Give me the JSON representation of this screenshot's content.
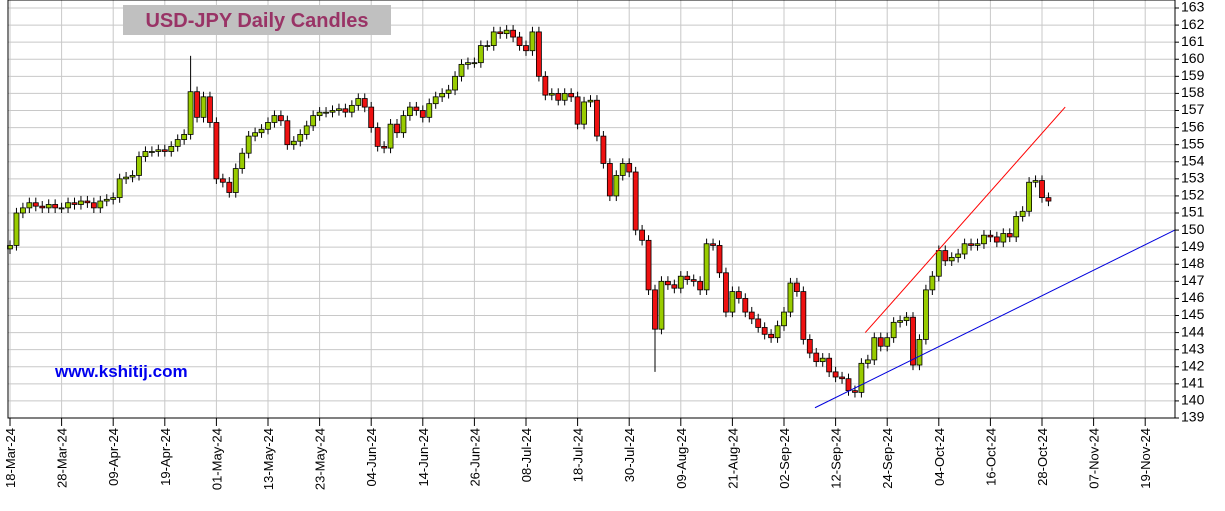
{
  "chart_data": {
    "type": "candlestick",
    "title": "USD-JPY Daily Candles",
    "annotation": "www.kshitij.com",
    "up_color": "#99cc00",
    "down_color": "#ee1111",
    "ylim": [
      139,
      163
    ],
    "yticks": [
      139,
      140,
      141,
      142,
      143,
      144,
      145,
      146,
      147,
      148,
      149,
      150,
      151,
      152,
      153,
      154,
      155,
      156,
      157,
      158,
      159,
      160,
      161,
      162,
      163
    ],
    "grid": true,
    "categories": [
      "18-Mar-24",
      null,
      null,
      null,
      null,
      null,
      null,
      null,
      "28-Mar-24",
      null,
      null,
      null,
      null,
      null,
      null,
      null,
      "09-Apr-24",
      null,
      null,
      null,
      null,
      null,
      null,
      null,
      "19-Apr-24",
      null,
      null,
      null,
      null,
      null,
      null,
      null,
      "01-May-24",
      null,
      null,
      null,
      null,
      null,
      null,
      null,
      "13-May-24",
      null,
      null,
      null,
      null,
      null,
      null,
      null,
      "23-May-24",
      null,
      null,
      null,
      null,
      null,
      null,
      null,
      "04-Jun-24",
      null,
      null,
      null,
      null,
      null,
      null,
      null,
      "14-Jun-24",
      null,
      null,
      null,
      null,
      null,
      null,
      null,
      "26-Jun-24",
      null,
      null,
      null,
      null,
      null,
      null,
      null,
      "08-Jul-24",
      null,
      null,
      null,
      null,
      null,
      null,
      null,
      "18-Jul-24",
      null,
      null,
      null,
      null,
      null,
      null,
      null,
      "30-Jul-24",
      null,
      null,
      null,
      null,
      null,
      null,
      null,
      "09-Aug-24",
      null,
      null,
      null,
      null,
      null,
      null,
      null,
      "21-Aug-24",
      null,
      null,
      null,
      null,
      null,
      null,
      null,
      "02-Sep-24",
      null,
      null,
      null,
      null,
      null,
      null,
      null,
      "12-Sep-24",
      null,
      null,
      null,
      null,
      null,
      null,
      null,
      "24-Sep-24",
      null,
      null,
      null,
      null,
      null,
      null,
      null,
      "04-Oct-24",
      null,
      null,
      null,
      null,
      null,
      null,
      null,
      "16-Oct-24",
      null,
      null,
      null,
      null,
      null,
      null,
      null,
      "28-Oct-24",
      null,
      null,
      null,
      null,
      null,
      null,
      null,
      "07-Nov-24",
      null,
      null,
      null,
      null,
      null,
      null,
      null,
      "19-Nov-24"
    ],
    "open": [
      148.9,
      149.1,
      151.0,
      151.3,
      151.6,
      151.4,
      151.3,
      151.5,
      151.3,
      151.3,
      151.6,
      151.5,
      151.7,
      151.6,
      151.3,
      151.7,
      151.8,
      151.9,
      153.0,
      153.1,
      153.2,
      154.3,
      154.6,
      154.6,
      154.7,
      154.6,
      154.9,
      155.3,
      155.6,
      158.1,
      156.6,
      157.8,
      156.3,
      153.0,
      152.8,
      152.2,
      153.6,
      154.5,
      155.5,
      155.7,
      155.9,
      156.3,
      156.7,
      156.4,
      155.0,
      155.2,
      155.6,
      156.1,
      156.7,
      156.9,
      156.9,
      157.0,
      157.1,
      156.9,
      157.3,
      157.7,
      157.2,
      156.0,
      154.9,
      154.8,
      156.2,
      155.7,
      156.7,
      157.2,
      157.0,
      156.6,
      157.4,
      157.8,
      158.0,
      158.2,
      159.0,
      159.7,
      159.8,
      159.8,
      160.8,
      160.8,
      161.6,
      161.5,
      161.7,
      161.3,
      160.8,
      160.5,
      161.6,
      159.0,
      157.9,
      158.0,
      157.6,
      158.0,
      157.8,
      156.2,
      157.5,
      157.6,
      155.5,
      153.9,
      152.0,
      153.2,
      153.9,
      153.4,
      150.0,
      149.4,
      146.5,
      144.2,
      147.0,
      146.8,
      146.6,
      147.3,
      147.1,
      147.0,
      146.5,
      149.2,
      149.1,
      147.5,
      145.2,
      146.4,
      146.0,
      145.2,
      144.8,
      144.3,
      143.9,
      143.7,
      144.4,
      145.2,
      146.9,
      146.4,
      143.6,
      142.8,
      142.3,
      142.5,
      141.7,
      141.4,
      141.3,
      140.6,
      140.5,
      142.2,
      142.4,
      143.7,
      143.2,
      143.7,
      144.6,
      144.7,
      144.9,
      142.1,
      143.6,
      146.5,
      147.3,
      148.8,
      148.2,
      148.4,
      148.6,
      149.2,
      149.1,
      149.2,
      149.7,
      149.6,
      149.3,
      149.8,
      149.6,
      150.8,
      151.1,
      152.8,
      152.9,
      151.9,
      null,
      null,
      null,
      null,
      null,
      null,
      null,
      null,
      null,
      null,
      null,
      null,
      null,
      null,
      null
    ],
    "high": [
      149.4,
      151.3,
      151.6,
      151.9,
      151.9,
      151.7,
      151.8,
      151.8,
      151.6,
      151.9,
      151.9,
      152.0,
      152.0,
      151.9,
      152.0,
      152.1,
      152.2,
      153.3,
      153.4,
      153.5,
      154.6,
      154.9,
      154.9,
      155.0,
      155.0,
      155.2,
      155.6,
      155.9,
      160.2,
      158.4,
      158.1,
      158.1,
      156.6,
      153.3,
      153.1,
      153.9,
      154.8,
      155.8,
      156.0,
      156.2,
      156.6,
      157.0,
      157.0,
      156.7,
      155.5,
      155.9,
      156.4,
      157.0,
      157.2,
      157.2,
      157.3,
      157.4,
      157.4,
      157.6,
      158.0,
      158.0,
      157.5,
      156.3,
      155.2,
      156.5,
      156.5,
      157.0,
      157.5,
      157.5,
      157.3,
      157.7,
      158.1,
      158.3,
      158.5,
      159.3,
      160.0,
      160.1,
      160.1,
      161.1,
      161.1,
      161.9,
      161.9,
      162.0,
      162.0,
      161.6,
      161.1,
      161.9,
      161.9,
      159.3,
      158.3,
      158.3,
      158.3,
      158.3,
      158.1,
      157.8,
      157.9,
      157.9,
      155.8,
      154.2,
      153.5,
      154.2,
      154.2,
      153.7,
      150.3,
      149.7,
      146.8,
      147.3,
      147.3,
      147.1,
      147.6,
      147.6,
      147.4,
      147.3,
      149.5,
      149.5,
      149.4,
      147.8,
      146.7,
      146.7,
      146.3,
      145.5,
      145.1,
      144.6,
      144.2,
      144.7,
      145.5,
      147.2,
      147.2,
      146.7,
      143.9,
      143.1,
      142.8,
      142.8,
      142.0,
      141.7,
      141.6,
      140.9,
      142.5,
      142.7,
      144.0,
      144.0,
      144.0,
      144.9,
      145.0,
      145.2,
      145.2,
      143.9,
      146.8,
      147.6,
      149.1,
      149.1,
      148.7,
      148.9,
      149.5,
      149.5,
      149.5,
      150.0,
      150.0,
      149.9,
      150.1,
      150.1,
      151.1,
      151.4,
      153.1,
      153.2,
      153.2,
      152.2,
      null,
      null,
      null,
      null,
      null,
      null,
      null,
      null,
      null,
      null,
      null,
      null,
      null,
      null,
      null
    ],
    "low": [
      148.6,
      148.8,
      150.7,
      151.0,
      151.1,
      151.0,
      151.0,
      151.0,
      151.0,
      151.0,
      151.2,
      151.2,
      151.3,
      151.0,
      151.0,
      151.4,
      151.5,
      151.6,
      152.7,
      152.8,
      152.9,
      154.0,
      154.3,
      154.3,
      154.3,
      154.3,
      154.6,
      155.0,
      155.3,
      156.3,
      156.3,
      156.0,
      152.7,
      152.5,
      151.9,
      151.9,
      153.3,
      154.2,
      155.2,
      155.4,
      155.6,
      156.0,
      156.1,
      154.7,
      154.7,
      154.9,
      155.3,
      155.8,
      156.4,
      156.6,
      156.6,
      156.7,
      156.6,
      156.6,
      157.0,
      156.9,
      155.7,
      154.6,
      154.5,
      154.5,
      155.4,
      155.4,
      156.4,
      156.7,
      156.3,
      156.3,
      157.1,
      157.5,
      157.7,
      157.9,
      158.7,
      159.4,
      159.5,
      159.5,
      160.5,
      160.5,
      161.2,
      161.2,
      161.0,
      160.5,
      160.2,
      160.2,
      158.7,
      157.6,
      157.6,
      157.3,
      157.3,
      157.5,
      155.9,
      155.9,
      157.2,
      155.2,
      153.6,
      151.7,
      151.7,
      152.9,
      153.1,
      149.7,
      149.1,
      146.2,
      141.7,
      143.9,
      146.5,
      146.3,
      146.3,
      146.8,
      146.7,
      146.2,
      146.2,
      148.8,
      147.2,
      144.9,
      144.9,
      145.7,
      144.9,
      144.5,
      144.0,
      143.6,
      143.4,
      143.4,
      144.1,
      144.9,
      146.1,
      143.3,
      142.5,
      142.0,
      142.0,
      141.4,
      141.1,
      141.0,
      140.3,
      140.2,
      140.2,
      141.9,
      142.1,
      142.9,
      142.9,
      143.4,
      144.3,
      144.4,
      141.8,
      141.8,
      143.3,
      146.2,
      147.0,
      147.9,
      147.9,
      148.1,
      148.3,
      148.8,
      148.8,
      148.9,
      149.3,
      149.0,
      149.0,
      149.3,
      149.3,
      150.5,
      150.8,
      152.5,
      151.6,
      151.4,
      null,
      null,
      null,
      null,
      null,
      null,
      null,
      null,
      null,
      null,
      null,
      null,
      null,
      null,
      null
    ],
    "close": [
      149.1,
      151.0,
      151.3,
      151.6,
      151.4,
      151.3,
      151.5,
      151.3,
      151.3,
      151.6,
      151.5,
      151.7,
      151.6,
      151.3,
      151.7,
      151.8,
      151.9,
      153.0,
      153.1,
      153.2,
      154.3,
      154.6,
      154.6,
      154.7,
      154.6,
      154.9,
      155.3,
      155.6,
      158.1,
      156.6,
      157.8,
      156.3,
      153.0,
      152.8,
      152.2,
      153.6,
      154.5,
      155.5,
      155.7,
      155.9,
      156.3,
      156.7,
      156.4,
      155.0,
      155.2,
      155.6,
      156.1,
      156.7,
      156.9,
      156.9,
      157.0,
      157.1,
      156.9,
      157.3,
      157.7,
      157.2,
      156.0,
      154.9,
      154.8,
      156.2,
      155.7,
      156.7,
      157.2,
      157.0,
      156.6,
      157.4,
      157.8,
      158.0,
      158.2,
      159.0,
      159.7,
      159.8,
      159.8,
      160.8,
      160.8,
      161.6,
      161.5,
      161.7,
      161.3,
      160.8,
      160.5,
      161.6,
      159.0,
      157.9,
      158.0,
      157.6,
      158.0,
      157.8,
      156.2,
      157.5,
      157.6,
      155.5,
      153.9,
      152.0,
      153.2,
      153.9,
      153.4,
      150.0,
      149.4,
      146.5,
      144.2,
      147.0,
      146.8,
      146.6,
      147.3,
      147.1,
      147.0,
      146.5,
      149.2,
      149.1,
      147.5,
      145.2,
      146.4,
      146.0,
      145.2,
      144.8,
      144.3,
      143.9,
      143.7,
      144.4,
      145.2,
      146.9,
      146.4,
      143.6,
      142.8,
      142.3,
      142.5,
      141.7,
      141.4,
      141.3,
      140.6,
      140.5,
      142.2,
      142.4,
      143.7,
      143.2,
      143.7,
      144.6,
      144.7,
      144.9,
      142.1,
      143.6,
      146.5,
      147.3,
      148.8,
      148.2,
      148.4,
      148.6,
      149.2,
      149.1,
      149.2,
      149.7,
      149.6,
      149.3,
      149.8,
      149.6,
      150.8,
      151.1,
      152.8,
      152.9,
      151.9,
      151.7,
      null,
      null,
      null,
      null,
      null,
      null,
      null,
      null,
      null,
      null,
      null,
      null,
      null,
      null,
      null
    ],
    "trendlines": [
      {
        "color": "#ff0000",
        "points": [
          [
            132.6,
            144.0
          ],
          [
            163.6,
            157.2
          ]
        ]
      },
      {
        "color": "#0000dd",
        "points": [
          [
            124.8,
            139.6
          ],
          [
            180.6,
            150.0
          ]
        ]
      }
    ]
  }
}
